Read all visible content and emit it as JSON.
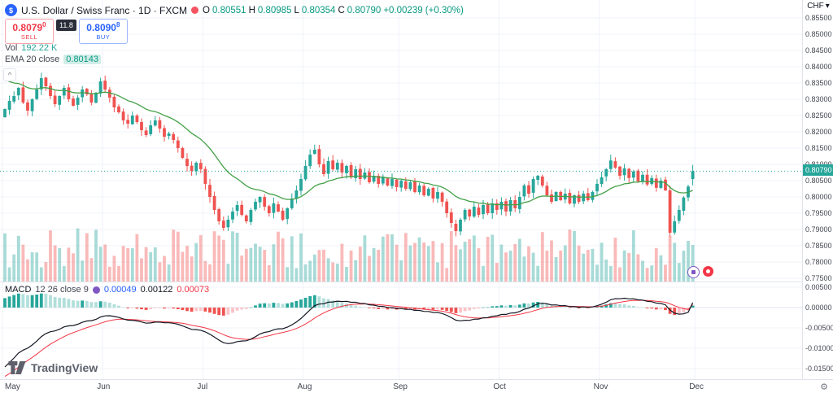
{
  "header": {
    "title": "U.S. Dollar / Swiss Franc · 1D · FXCM",
    "ohlc": {
      "o_label": "O",
      "o_value": "0.80551",
      "h_label": "H",
      "h_value": "0.80985",
      "l_label": "L",
      "l_value": "0.80354",
      "c_label": "C",
      "c_value": "0.80790",
      "change": "+0.00239 (+0.30%)"
    }
  },
  "trade_widget": {
    "sell_price": "0.8079",
    "sell_sup": "0",
    "sell_label": "SELL",
    "spread": "11.8",
    "buy_price": "0.8090",
    "buy_sup": "8",
    "buy_label": "BUY"
  },
  "legends": {
    "volume_label": "Vol",
    "volume_value": "192.22 K",
    "ema_label": "EMA 20 close",
    "ema_value": "0.80143",
    "macd_label": "MACD",
    "macd_params": "12 26 close 9",
    "macd_hist_value": "0.00049",
    "macd_line_value": "0.00122",
    "macd_signal_value": "0.00073"
  },
  "axis": {
    "currency": "CHF",
    "last_price_label": "0.80790"
  },
  "icons": {
    "chevron_down": "▾",
    "gear": "⚙",
    "collapse": "^",
    "symbol_logo": "$"
  },
  "branding": {
    "logo_text": "TradingView"
  },
  "colors": {
    "up": "#26a69a",
    "down": "#ef5350",
    "ema": "#43a047",
    "macd_line": "#131722",
    "signal_line": "#f23645",
    "hist_pos": "#26a69a",
    "hist_pos_weak": "#b2dfdb",
    "hist_neg": "#ef5350",
    "hist_neg_weak": "#fbc4c9",
    "sell": "#f23645",
    "buy": "#2962ff",
    "last_price_bg": "#26a69a",
    "value_green": "#089981"
  },
  "chart_data": {
    "type": "candlestick",
    "title": "USD/CHF 1D candlesticks with EMA 20, volume and MACD(12,26,9)",
    "price_axis_ticks": [
      0.855,
      0.85,
      0.845,
      0.84,
      0.835,
      0.83,
      0.825,
      0.82,
      0.815,
      0.81,
      0.805,
      0.8,
      0.795,
      0.79,
      0.785,
      0.78,
      0.775
    ],
    "macd_axis_ticks": [
      0.005,
      0,
      -0.005,
      -0.01,
      -0.015
    ],
    "months": [
      "May",
      "Jun",
      "Jul",
      "Aug",
      "Sep",
      "Oct",
      "Nov",
      "Dec"
    ],
    "month_start_indices": [
      0,
      22,
      44,
      66,
      87,
      109,
      131,
      152
    ],
    "first_open": 0.8245,
    "closes": [
      0.827,
      0.8295,
      0.831,
      0.8335,
      0.829,
      0.8265,
      0.83,
      0.833,
      0.8365,
      0.834,
      0.831,
      0.8285,
      0.831,
      0.8335,
      0.83,
      0.828,
      0.8305,
      0.833,
      0.8315,
      0.829,
      0.832,
      0.8355,
      0.833,
      0.8305,
      0.8275,
      0.826,
      0.8235,
      0.8225,
      0.825,
      0.823,
      0.8205,
      0.819,
      0.822,
      0.8235,
      0.821,
      0.8185,
      0.8195,
      0.8175,
      0.815,
      0.812,
      0.8095,
      0.808,
      0.8105,
      0.8085,
      0.804,
      0.8,
      0.796,
      0.7925,
      0.7905,
      0.793,
      0.7955,
      0.7975,
      0.7945,
      0.7925,
      0.796,
      0.7985,
      0.8,
      0.797,
      0.795,
      0.798,
      0.7955,
      0.793,
      0.7965,
      0.7995,
      0.802,
      0.8055,
      0.8095,
      0.813,
      0.8145,
      0.81,
      0.807,
      0.811,
      0.8085,
      0.8105,
      0.8075,
      0.8095,
      0.806,
      0.8085,
      0.8055,
      0.8075,
      0.8045,
      0.8065,
      0.804,
      0.806,
      0.8035,
      0.8055,
      0.803,
      0.805,
      0.8025,
      0.8045,
      0.8015,
      0.8035,
      0.8005,
      0.8025,
      0.7995,
      0.8015,
      0.7985,
      0.795,
      0.792,
      0.7895,
      0.793,
      0.796,
      0.794,
      0.797,
      0.7945,
      0.7975,
      0.795,
      0.798,
      0.796,
      0.7985,
      0.7955,
      0.799,
      0.7965,
      0.8,
      0.8035,
      0.801,
      0.8055,
      0.8065,
      0.8035,
      0.8005,
      0.7985,
      0.8015,
      0.799,
      0.801,
      0.798,
      0.8005,
      0.7985,
      0.801,
      0.799,
      0.8015,
      0.804,
      0.806,
      0.8085,
      0.8112,
      0.809,
      0.8065,
      0.8088,
      0.8058,
      0.8078,
      0.8048,
      0.8068,
      0.8038,
      0.8058,
      0.8028,
      0.805,
      0.802,
      0.789,
      0.7925,
      0.796,
      0.7998,
      0.8032,
      0.8079
    ],
    "last_candle": {
      "open": 0.80551,
      "high": 0.80985,
      "low": 0.80354,
      "close": 0.8079
    },
    "last_price": 0.8079,
    "ema_period": 20,
    "ema_seed": 0.837,
    "ema_last": 0.80143,
    "volume_last": 192220,
    "volume_max_scale": 320000,
    "macd": {
      "fast": 12,
      "slow": 26,
      "signal": 9,
      "seed_fast": 0.83,
      "seed_slow": 0.8455,
      "seed_signal": -0.0175,
      "last_hist": 0.00049,
      "last_macd": 0.00122,
      "last_signal": 0.00073
    }
  }
}
